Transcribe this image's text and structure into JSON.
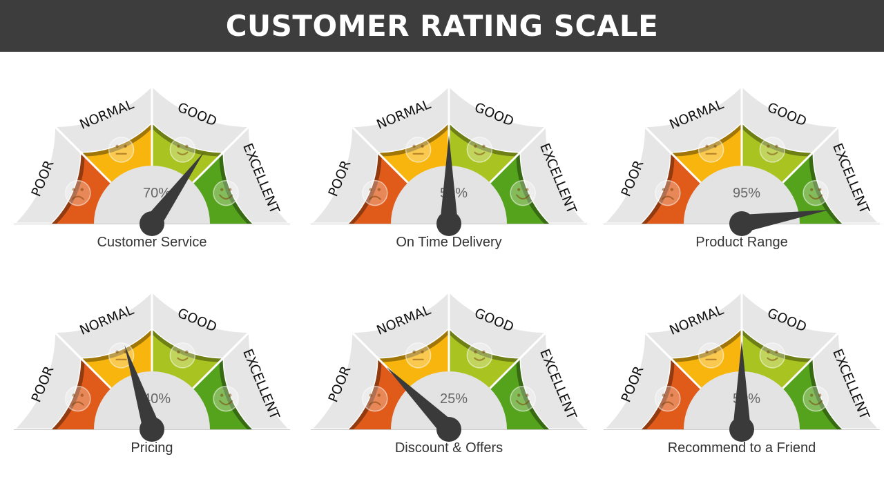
{
  "title": "CUSTOMER RATING SCALE",
  "colors": {
    "header_bg": "#3d3d3d",
    "poor": "#e05a1a",
    "normal": "#f7b50d",
    "good": "#a9c421",
    "excellent": "#55a31d",
    "outer_band": "#e6e6e6",
    "needle": "#3a3a3a"
  },
  "zone_labels": [
    "POOR",
    "NORMAL",
    "GOOD",
    "EXCELLENT"
  ],
  "zone_icons": [
    "sad-face-icon",
    "neutral-face-icon",
    "smiling-face-icon",
    "happy-face-icon"
  ],
  "gauges": [
    {
      "label": "Customer Service",
      "value": "70%",
      "percent": 70
    },
    {
      "label": "On Time Delivery",
      "value": "50%",
      "percent": 50
    },
    {
      "label": "Product Range",
      "value": "95%",
      "percent": 95
    },
    {
      "label": "Pricing",
      "value": "40%",
      "percent": 40
    },
    {
      "label": "Discount & Offers",
      "value": "25%",
      "percent": 25
    },
    {
      "label": "Recommend to a Friend",
      "value": "50%",
      "percent": 50
    }
  ]
}
